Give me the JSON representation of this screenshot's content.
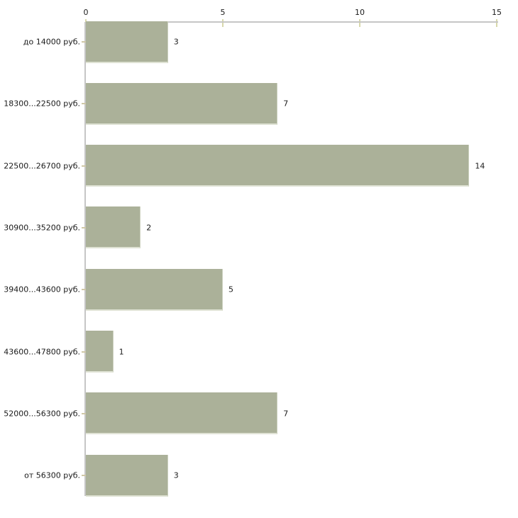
{
  "chart_data": {
    "type": "bar",
    "orientation": "horizontal",
    "title": "",
    "xlabel": "",
    "ylabel": "",
    "categories": [
      "до 14000 руб.",
      "18300...22500 руб.",
      "22500...26700 руб.",
      "30900...35200 руб.",
      "39400...43600 руб.",
      "43600...47800 руб.",
      "52000...56300 руб.",
      "от 56300 руб."
    ],
    "values": [
      3,
      7,
      14,
      2,
      5,
      1,
      7,
      3
    ],
    "x_ticks": [
      "0",
      "5",
      "10",
      "15"
    ],
    "x_tick_values": [
      0,
      5,
      10,
      15
    ],
    "xlim": [
      0,
      15
    ],
    "grid": false,
    "legend": "none",
    "axis_position": "top",
    "colors": {
      "bar_fill": "#abb199",
      "bar_edge": "#dfe2d4",
      "bar_edge_right": "#ccd1bf",
      "axis_line": "#c6c6c6",
      "x_tick_mark": "#d8d8ab",
      "y_tick_mark": "#cfc7a6",
      "text": "#1a1a1a",
      "background": "#ffffff"
    }
  }
}
